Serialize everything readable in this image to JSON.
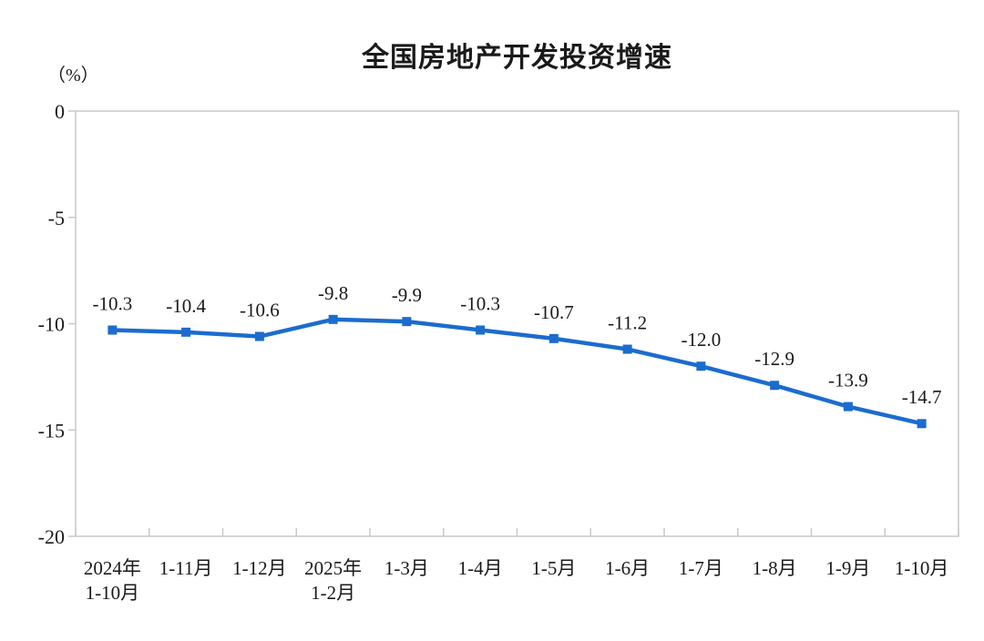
{
  "page": {
    "background": "#ffffff"
  },
  "chart_data": {
    "type": "line",
    "title": "全国房地产开发投资增速",
    "unit_label": "（%）",
    "categories": [
      [
        "2024年",
        "1-10月"
      ],
      [
        "1-11月"
      ],
      [
        "1-12月"
      ],
      [
        "2025年",
        "1-2月"
      ],
      [
        "1-3月"
      ],
      [
        "1-4月"
      ],
      [
        "1-5月"
      ],
      [
        "1-6月"
      ],
      [
        "1-7月"
      ],
      [
        "1-8月"
      ],
      [
        "1-9月"
      ],
      [
        "1-10月"
      ]
    ],
    "values": [
      -10.3,
      -10.4,
      -10.6,
      -9.8,
      -9.9,
      -10.3,
      -10.7,
      -11.2,
      -12.0,
      -12.9,
      -13.9,
      -14.7
    ],
    "data_labels": [
      "-10.3",
      "-10.4",
      "-10.6",
      "-9.8",
      "-9.9",
      "-10.3",
      "-10.7",
      "-11.2",
      "-12.0",
      "-12.9",
      "-13.9",
      "-14.7"
    ],
    "yticks": [
      0,
      -5,
      -10,
      -15,
      -20
    ],
    "ylim": [
      0,
      -20
    ],
    "grid": false,
    "legend": "none",
    "marker": "square",
    "line_color": "#1b6cce",
    "text_color": "#1a1a1a",
    "axis_color": "#c9c9c9"
  }
}
